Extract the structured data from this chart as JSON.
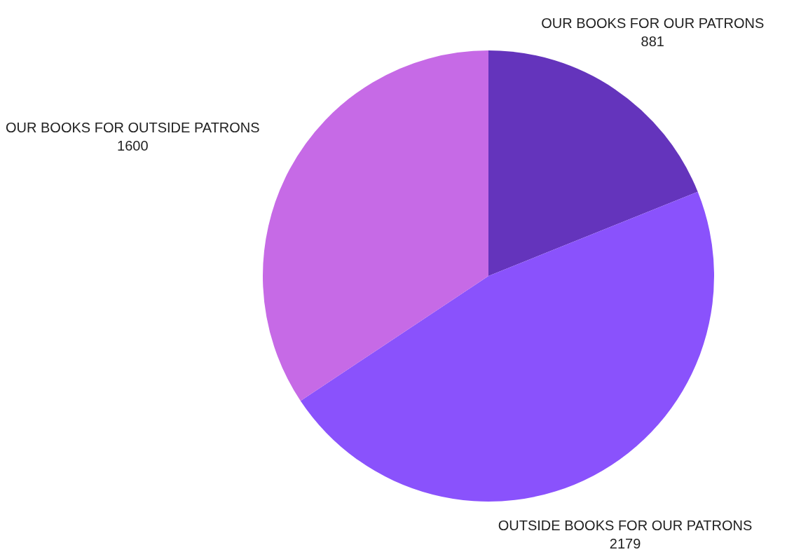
{
  "chart_data": {
    "type": "pie",
    "categories": [
      "OUR BOOKS FOR OUR PATRONS",
      "OUTSIDE BOOKS FOR OUR PATRONS",
      "OUR BOOKS FOR OUTSIDE PATRONS"
    ],
    "values": [
      881,
      2179,
      1600
    ],
    "colors": [
      "#6434bc",
      "#8a52fc",
      "#c66ae6"
    ],
    "data_labels": true,
    "legend": false
  }
}
